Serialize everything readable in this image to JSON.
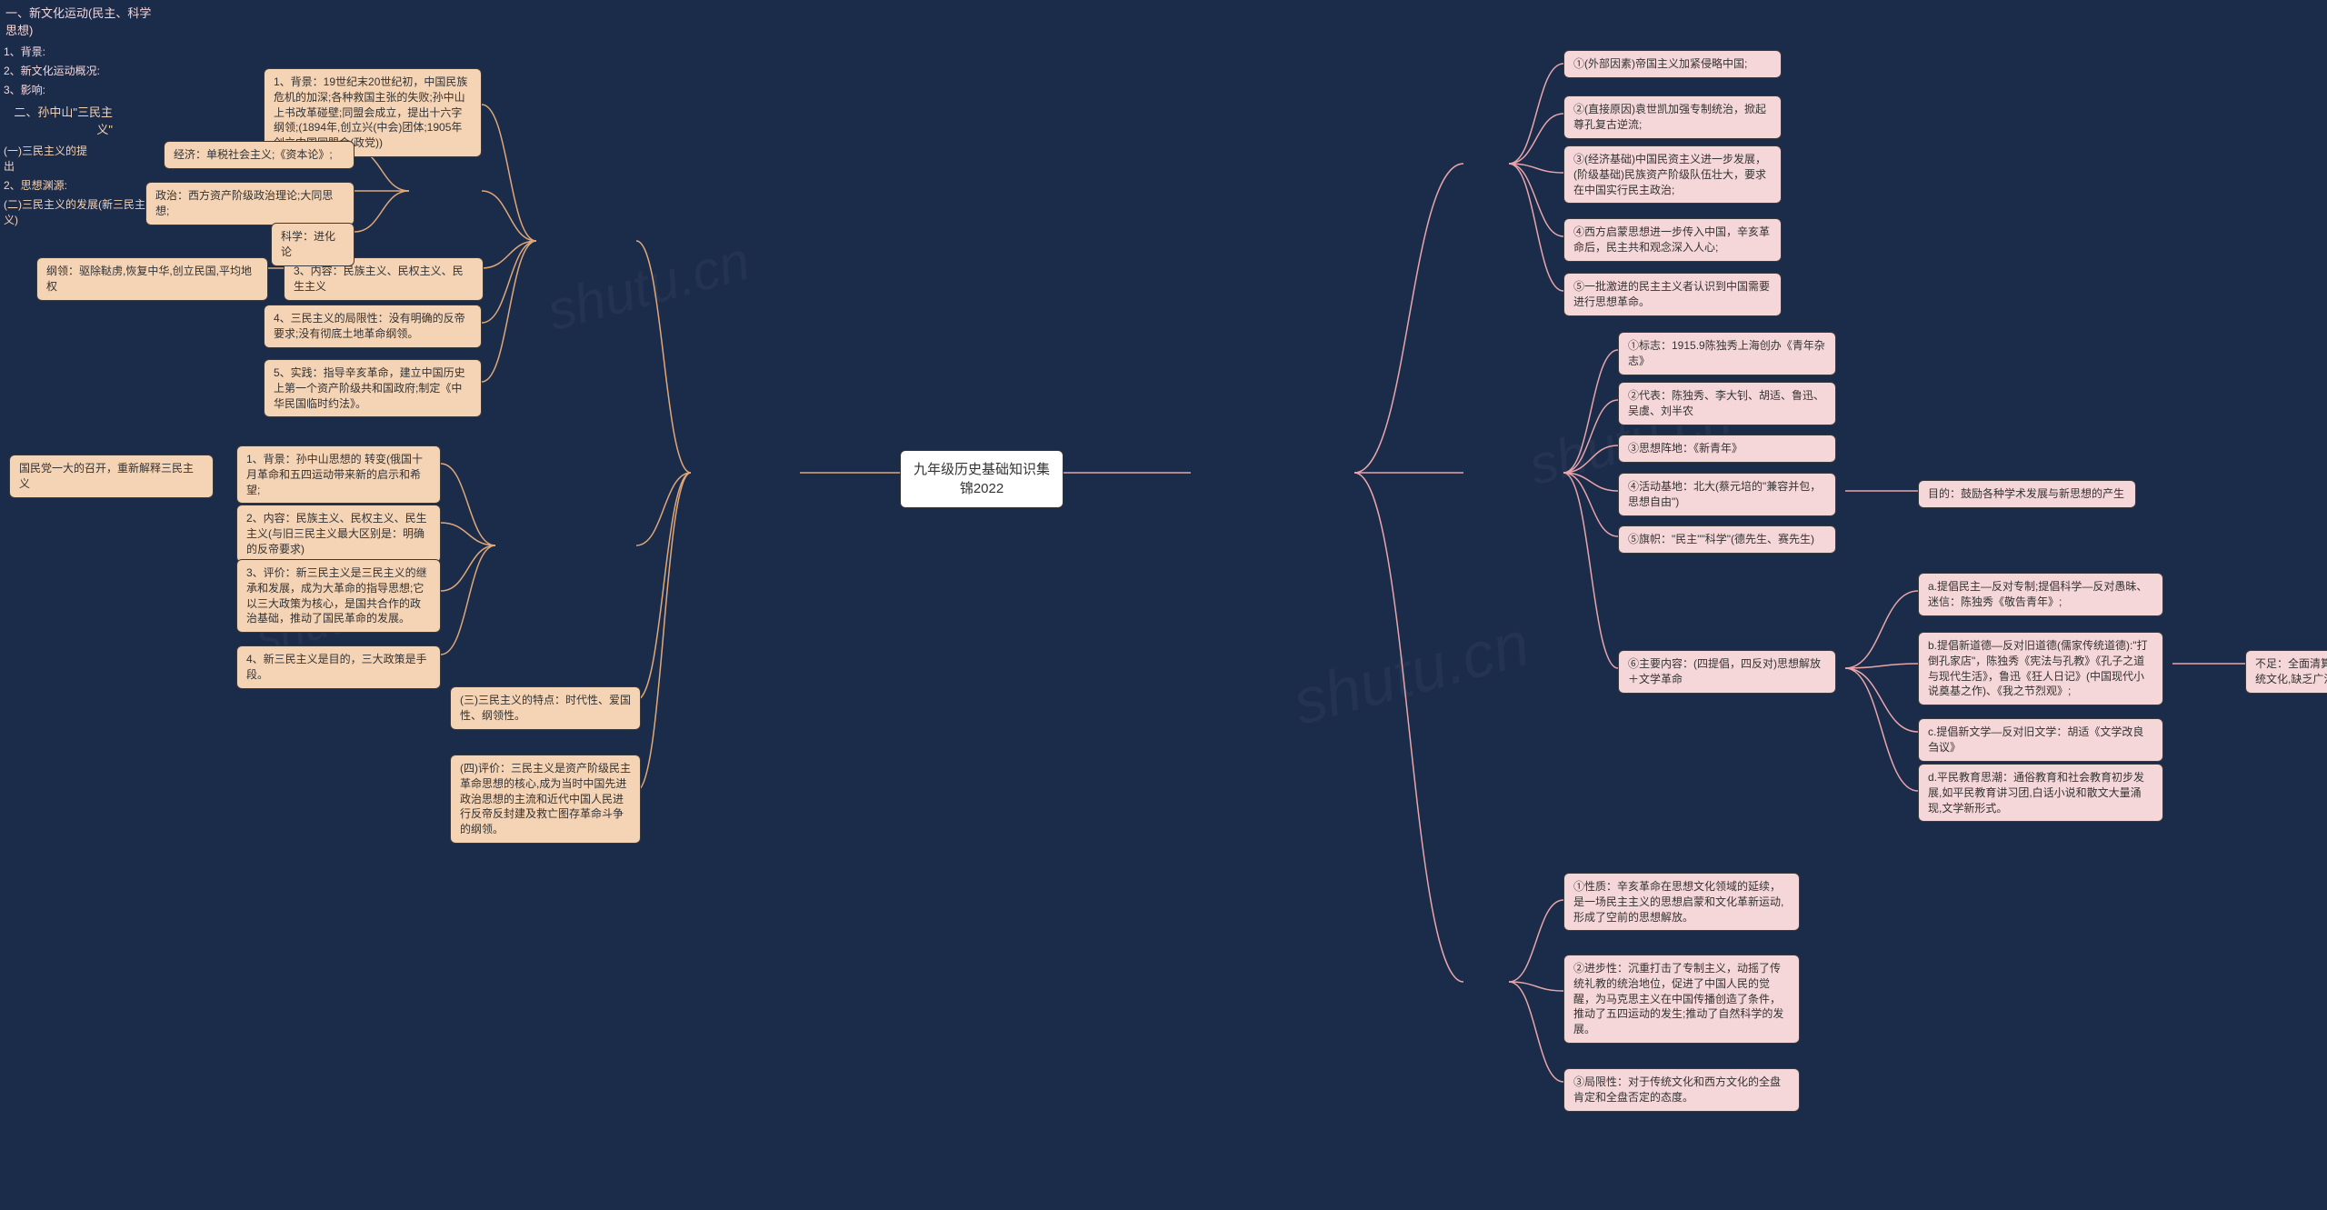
{
  "colors": {
    "background": "#1b2b4a",
    "node_pink": "#f6d7d9",
    "node_orange": "#f5d3b5",
    "node_white": "#ffffff",
    "border": "#3a3a3a",
    "connector_pink": "#e8a5aa",
    "connector_orange": "#e0a878",
    "text": "#333333",
    "text_white": "#ffffff"
  },
  "watermark": "shutu.cn",
  "root": "九年级历史基础知识集锦2022",
  "right": {
    "title": "一、新文化运动(民主、科学思想)",
    "b1": {
      "title": "1、背景:",
      "items": [
        "①(外部因素)帝国主义加紧侵略中国;",
        "②(直接原因)袁世凯加强专制统治，掀起尊孔复古逆流;",
        "③(经济基础)中国民资主义进一步发展，(阶级基础)民族资产阶级队伍壮大，要求在中国实行民主政治;",
        "④西方启蒙思想进一步传入中国，辛亥革命后，民主共和观念深入人心;",
        "⑤一批激进的民主主义者认识到中国需要进行思想革命。"
      ]
    },
    "b2": {
      "title": "2、新文化运动概况:",
      "items": [
        "①标志：1915.9陈独秀上海创办《青年杂志》",
        "②代表：陈独秀、李大钊、胡适、鲁迅、吴虞、刘半农",
        "③思想阵地：《新青年》",
        "④活动基地：北大(蔡元培的\"兼容并包，思想自由\")",
        "⑤旗帜：\"民主\"\"科学\"(德先生、赛先生)",
        "⑥主要内容：(四提倡，四反对)思想解放＋文学革命"
      ],
      "b2_4_right": "目的：鼓励各种学术发展与新思想的产生",
      "b2_6_items": [
        "a.提倡民主―反对专制;提倡科学―反对愚昧、迷信：陈独秀《敬告青年》;",
        "b.提倡新道德―反对旧道德(儒家传统道德):\"打倒孔家店\"，陈独秀《宪法与孔教》《孔子之道与现代生活》，鲁迅《狂人日记》(中国现代小说奠基之作)、《我之节烈观》;",
        "c.提倡新文学―反对旧文学：胡适《文学改良刍议》",
        "d.平民教育思潮：通俗教育和社会教育初步发展,如平民教育讲习团,白话小说和散文大量涌现,文学新形式。"
      ],
      "b2_6_b_right": "不足：全面清算过于偏激,全面否定了传统文化,缺乏广泛的群众基础。"
    },
    "b3": {
      "title": "3、影响:",
      "items": [
        "①性质：辛亥革命在思想文化领域的延续，是一场民主主义的思想启蒙和文化革新运动,形成了空前的思想解放。",
        "②进步性：沉重打击了专制主义，动摇了传统礼教的统治地位，促进了中国人民的觉醒，为马克思主义在中国传播创造了条件，推动了五四运动的发生;推动了自然科学的发展。",
        "③局限性：对于传统文化和西方文化的全盘肯定和全盘否定的态度。"
      ]
    }
  },
  "left": {
    "title": "二、孙中山\"三民主义\"",
    "s1": {
      "title": "(一)三民主义的提出",
      "items": [
        "1、背景：19世纪末20世纪初，中国民族危机的加深;各种救国主张的失败;孙中山上书改革碰壁;同盟会成立，提出十六字纲领;(1894年,创立兴(中会)团体;1905年创立中国同盟会(政党))",
        "2、思想渊源:",
        "3、内容：民族主义、民权主义、民生主义",
        "4、三民主义的局限性：没有明确的反帝要求;没有彻底土地革命纲领。",
        "5、实践：指导辛亥革命，建立中国历史上第一个资产阶级共和国政府;制定《中华民国临时约法》。"
      ],
      "s1_2_items": [
        "经济：单税社会主义;《资本论》;",
        "政治：西方资产阶级政治理论;大同思想;",
        "科学：进化论"
      ],
      "s1_3_left": "纲领：驱除鞑虏,恢复中华,创立民国,平均地权"
    },
    "s2": {
      "title": "(二)三民主义的发展(新三民主义)",
      "items": [
        "1、背景：孙中山思想的   转变(俄国十月革命和五四运动带来新的启示和希望;",
        "2、内容：民族主义、民权主义、民生主义(与旧三民主义最大区别是：明确的反帝要求)",
        "3、评价：新三民主义是三民主义的继承和发展，成为大革命的指导思想;它以三大政策为核心，是国共合作的政治基础，推动了国民革命的发展。",
        "4、新三民主义是目的，三大政策是手段。"
      ],
      "s2_1_left": "国民党一大的召开，重新解释三民主义"
    },
    "s3": "(三)三民主义的特点：时代性、爱国性、纲领性。",
    "s4": "(四)评价：三民主义是资产阶级民主革命思想的核心,成为当时中国先进政治思想的主流和近代中国人民进行反帝反封建及救亡图存革命斗争的纲领。"
  }
}
